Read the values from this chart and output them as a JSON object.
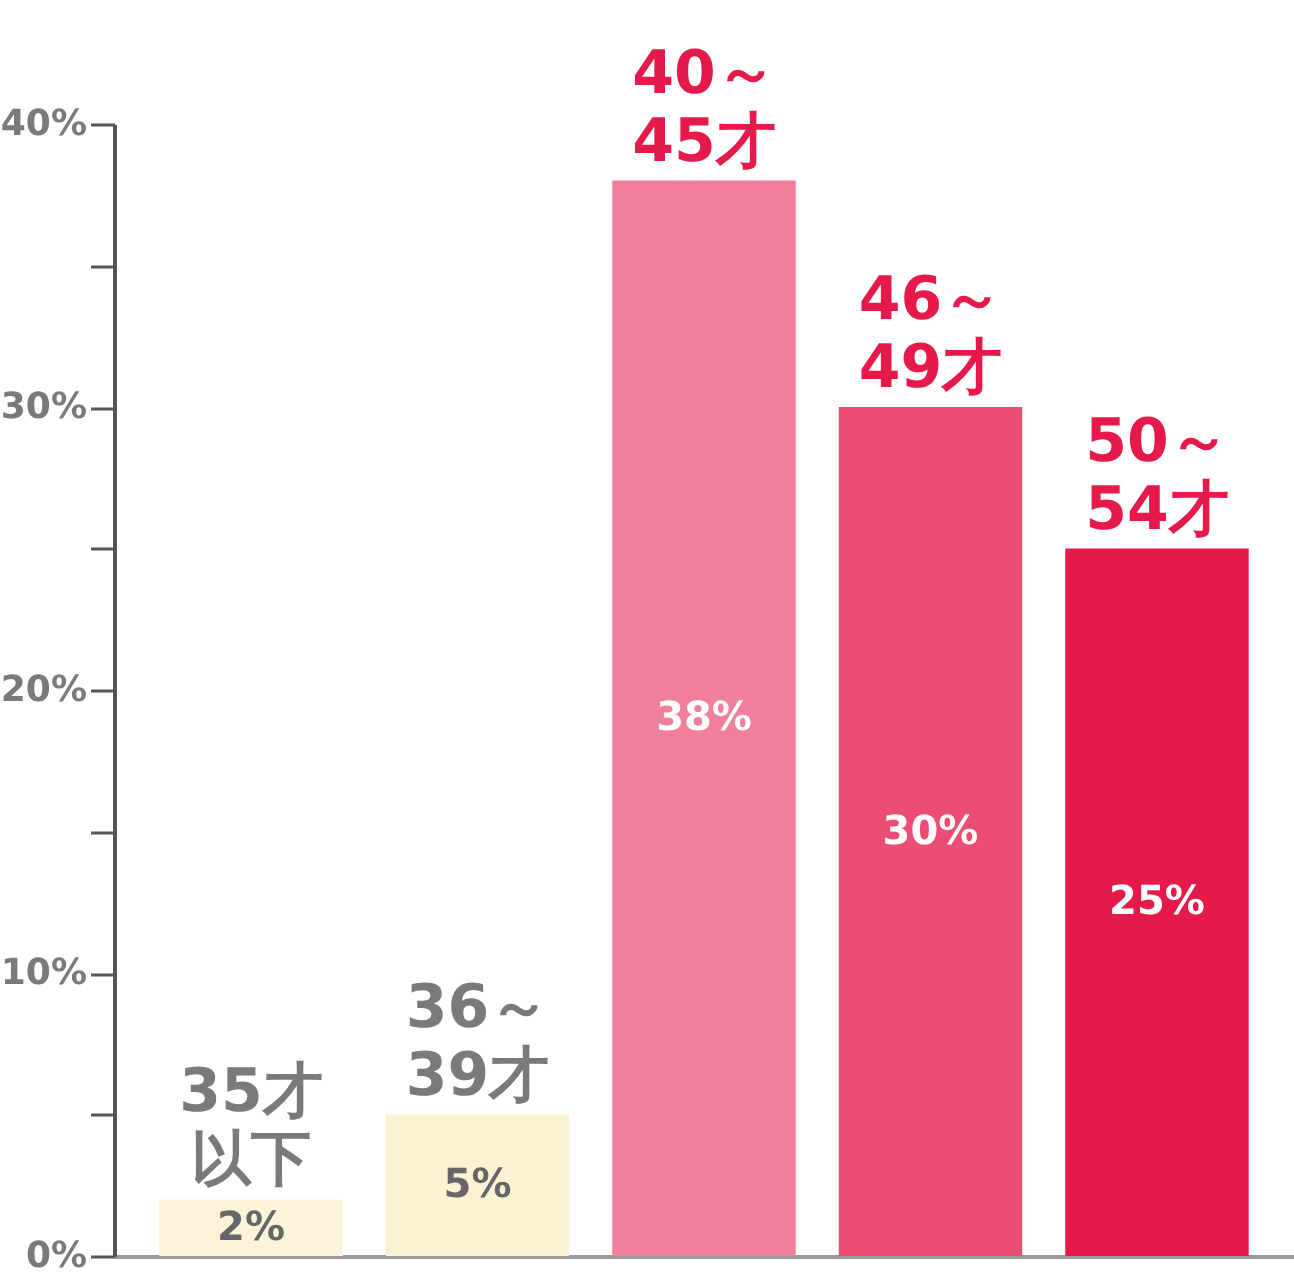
{
  "chart_data": {
    "type": "bar",
    "categories": [
      "35才以下",
      "36～39才",
      "40～45才",
      "46～49才",
      "50～54才"
    ],
    "values": [
      2,
      5,
      38,
      30,
      25
    ],
    "colors": [
      "#fdf3d9",
      "#fdf1d4",
      "#f07f9b",
      "#ec4d73",
      "#e6194b"
    ],
    "value_labels": [
      "2%",
      "5%",
      "38%",
      "30%",
      "25%"
    ],
    "ylim": [
      0,
      40
    ],
    "yticks": [
      {
        "value": 0,
        "label": "0%"
      },
      {
        "value": 5,
        "label": null
      },
      {
        "value": 10,
        "label": "10%"
      },
      {
        "value": 15,
        "label": null
      },
      {
        "value": 20,
        "label": "20%"
      },
      {
        "value": 25,
        "label": null
      },
      {
        "value": 30,
        "label": "30%"
      },
      {
        "value": 35,
        "label": null
      },
      {
        "value": 40,
        "label": "40%"
      }
    ],
    "grid": false
  }
}
